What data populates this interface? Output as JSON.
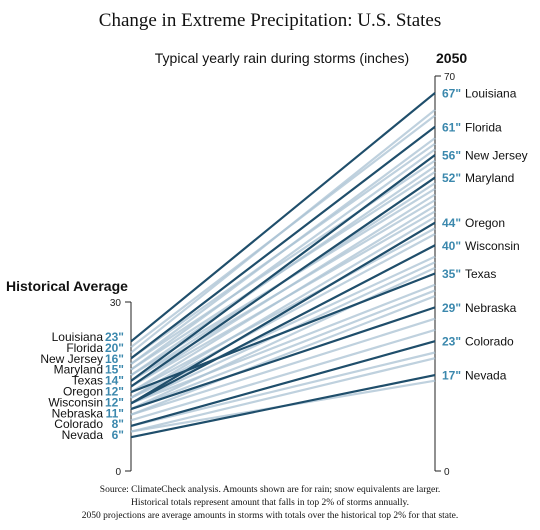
{
  "chart_data": {
    "type": "slope",
    "title": "Change in Extreme Precipitation: U.S. States",
    "subtitle": "Typical yearly rain during storms (inches)",
    "left_axis": {
      "label": "Historical Average",
      "ylim": [
        0,
        30
      ],
      "ticks": [
        "30",
        "0"
      ]
    },
    "right_axis": {
      "label": "2050",
      "ylim": [
        0,
        70
      ],
      "ticks": [
        "70",
        "0"
      ]
    },
    "unit_suffix": "\"",
    "colors": {
      "highlight": "#1f4e6b",
      "background": "#a9c1d3",
      "value_text": "#3b88ad",
      "label_text": "#111111",
      "axis": "#222222"
    },
    "labeled_states": [
      {
        "name": "Louisiana",
        "historical": 23,
        "projected_2050": 67
      },
      {
        "name": "Florida",
        "historical": 20,
        "projected_2050": 61
      },
      {
        "name": "New Jersey",
        "historical": 16,
        "projected_2050": 56
      },
      {
        "name": "Maryland",
        "historical": 15,
        "projected_2050": 52
      },
      {
        "name": "Texas",
        "historical": 14,
        "projected_2050": 35
      },
      {
        "name": "Oregon",
        "historical": 12,
        "projected_2050": 44
      },
      {
        "name": "Wisconsin",
        "historical": 12,
        "projected_2050": 40
      },
      {
        "name": "Nebraska",
        "historical": 11,
        "projected_2050": 29
      },
      {
        "name": "Colorado",
        "historical": 8,
        "projected_2050": 23
      },
      {
        "name": "Nevada",
        "historical": 6,
        "projected_2050": 17
      }
    ],
    "other_states": [
      {
        "historical": 22,
        "projected_2050": 63
      },
      {
        "historical": 21,
        "projected_2050": 64
      },
      {
        "historical": 20,
        "projected_2050": 58
      },
      {
        "historical": 19,
        "projected_2050": 59
      },
      {
        "historical": 19,
        "projected_2050": 55
      },
      {
        "historical": 18,
        "projected_2050": 57
      },
      {
        "historical": 18,
        "projected_2050": 53
      },
      {
        "historical": 17,
        "projected_2050": 54
      },
      {
        "historical": 17,
        "projected_2050": 50
      },
      {
        "historical": 16,
        "projected_2050": 51
      },
      {
        "historical": 16,
        "projected_2050": 48
      },
      {
        "historical": 15,
        "projected_2050": 49
      },
      {
        "historical": 15,
        "projected_2050": 46
      },
      {
        "historical": 14,
        "projected_2050": 47
      },
      {
        "historical": 14,
        "projected_2050": 43
      },
      {
        "historical": 13,
        "projected_2050": 45
      },
      {
        "historical": 13,
        "projected_2050": 42
      },
      {
        "historical": 13,
        "projected_2050": 38
      },
      {
        "historical": 12,
        "projected_2050": 37
      },
      {
        "historical": 12,
        "projected_2050": 33
      },
      {
        "historical": 11,
        "projected_2050": 36
      },
      {
        "historical": 11,
        "projected_2050": 32
      },
      {
        "historical": 10,
        "projected_2050": 31
      },
      {
        "historical": 10,
        "projected_2050": 27
      },
      {
        "historical": 9,
        "projected_2050": 25
      },
      {
        "historical": 8,
        "projected_2050": 21
      },
      {
        "historical": 7,
        "projected_2050": 20
      },
      {
        "historical": 7,
        "projected_2050": 16
      }
    ]
  },
  "source_lines": [
    "Source: ClimateCheck analysis. Amounts shown are for rain; snow equivalents are larger.",
    "Historical totals represent amount that falls in top 2% of storms annually.",
    "2050 projections are average amounts in storms with totals over the historical top 2% for that state."
  ]
}
